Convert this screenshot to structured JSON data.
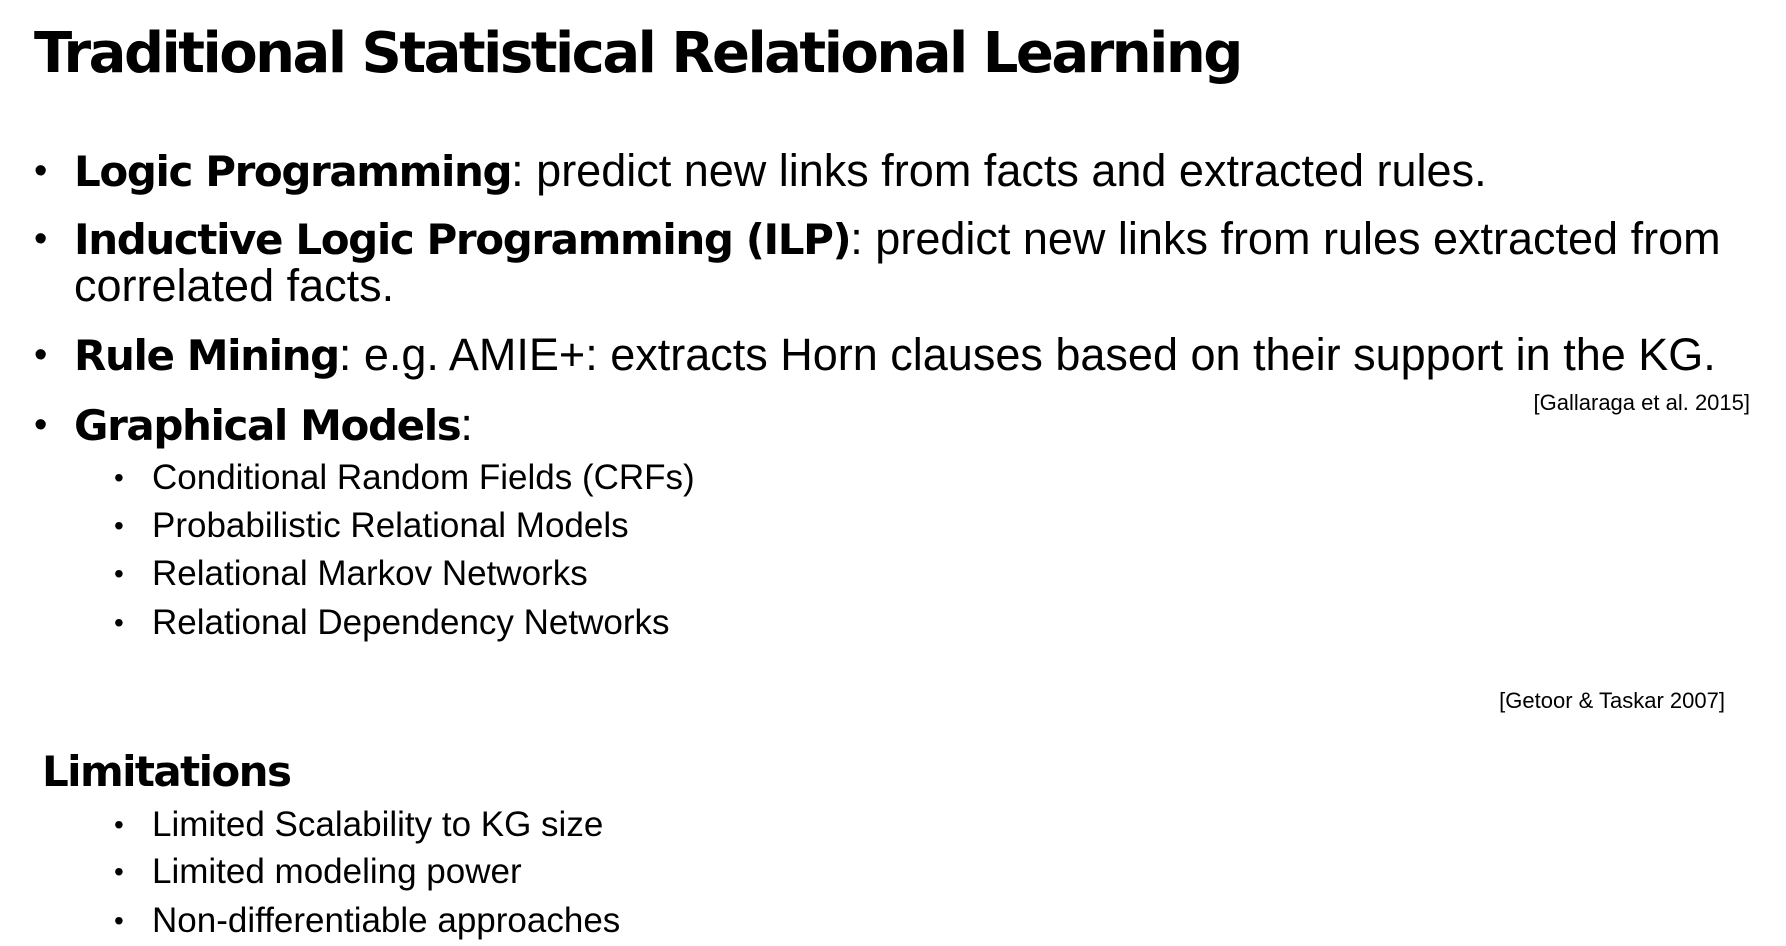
{
  "title": "Traditional Statistical Relational Learning",
  "bullets": [
    {
      "term": "Logic Programming",
      "text": ": predict new links from facts and extracted rules."
    },
    {
      "term": "Inductive Logic Programming (ILP)",
      "text": ": predict new links from rules extracted from",
      "text_line2": "correlated facts."
    },
    {
      "term": "Rule Mining",
      "text": ": e.g. AMIE+: extracts Horn clauses based on their support in the KG."
    },
    {
      "term": "Graphical Models",
      "text": ":",
      "sub_items": [
        "Conditional Random Fields (CRFs)",
        "Probabilistic Relational Models",
        "Relational Markov Networks",
        "Relational Dependency Networks"
      ]
    }
  ],
  "citations": {
    "gallaraga": "[Gallaraga et al. 2015]",
    "getoor": "[Getoor & Taskar 2007]"
  },
  "limitations": {
    "heading": "Limitations",
    "items": [
      "Limited Scalability to KG size",
      "Limited modeling power",
      "Non-differentiable approaches"
    ]
  }
}
